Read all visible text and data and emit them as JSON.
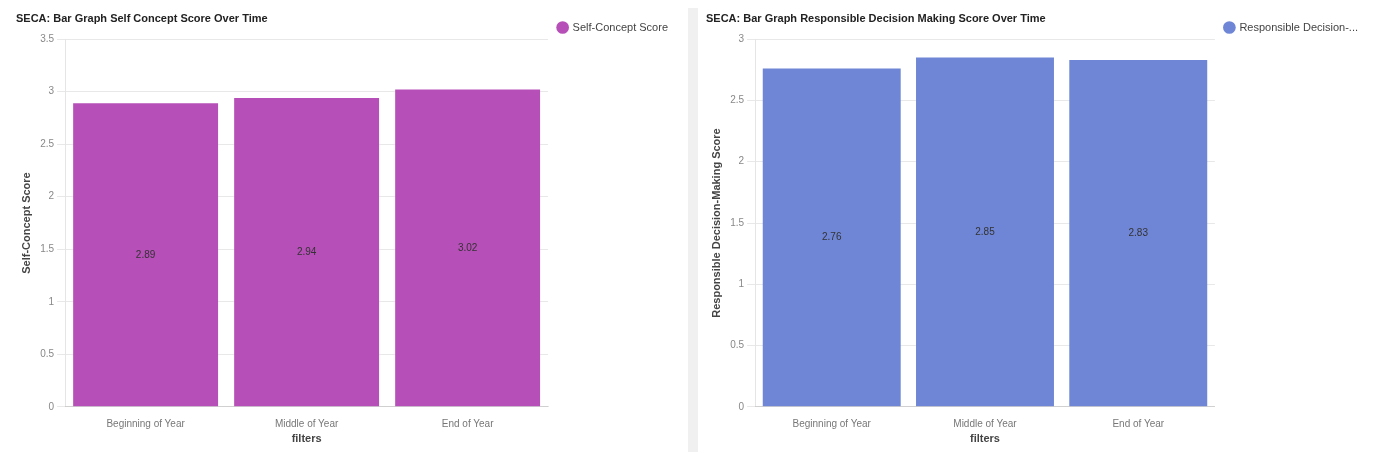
{
  "chart_data": [
    {
      "type": "bar",
      "title": "SECA: Bar Graph Self Concept Score Over Time",
      "xlabel": "filters",
      "ylabel": "Self-Concept Score",
      "categories": [
        "Beginning of Year",
        "Middle of Year",
        "End of Year"
      ],
      "series": [
        {
          "name": "Self-Concept Score",
          "color": "#b64fb7",
          "values": [
            2.89,
            2.94,
            3.02
          ]
        }
      ],
      "ylim": [
        0,
        3.5
      ],
      "yticks": [
        0,
        0.5,
        1,
        1.5,
        2,
        2.5,
        3,
        3.5
      ],
      "grid": "y",
      "legend": "top right",
      "data_labels": true
    },
    {
      "type": "bar",
      "title": "SECA: Bar Graph Responsible Decision Making Score Over Time",
      "xlabel": "filters",
      "ylabel": "Responsible Decision-Making Score",
      "categories": [
        "Beginning of Year",
        "Middle of Year",
        "End of Year"
      ],
      "series": [
        {
          "name": "Responsible Decision-...",
          "color": "#6f86d6",
          "values": [
            2.76,
            2.85,
            2.83
          ]
        }
      ],
      "ylim": [
        0,
        3
      ],
      "yticks": [
        0,
        0.5,
        1,
        1.5,
        2,
        2.5,
        3
      ],
      "grid": "y",
      "legend": "top right",
      "data_labels": true
    }
  ]
}
